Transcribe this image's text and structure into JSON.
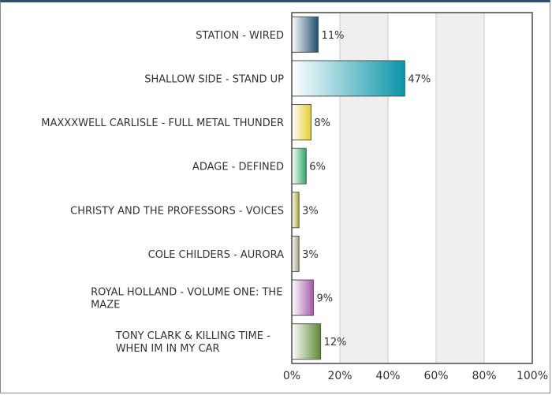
{
  "chart_data": {
    "type": "bar",
    "orientation": "horizontal",
    "categories": [
      [
        "STATION - WIRED"
      ],
      [
        "SHALLOW SIDE - STAND UP"
      ],
      [
        "MAXXXWELL CARLISLE - FULL METAL THUNDER"
      ],
      [
        "ADAGE - DEFINED"
      ],
      [
        "CHRISTY AND THE PROFESSORS - VOICES"
      ],
      [
        "COLE CHILDERS - AURORA"
      ],
      [
        "ROYAL HOLLAND - VOLUME ONE: THE",
        "MAZE"
      ],
      [
        "TONY CLARK & KILLING TIME -",
        "WHEN IM IN MY CAR"
      ]
    ],
    "values": [
      11,
      47,
      8,
      6,
      3,
      3,
      9,
      12
    ],
    "value_labels": [
      "11%",
      "47%",
      "8%",
      "6%",
      "3%",
      "3%",
      "9%",
      "12%"
    ],
    "xlim": [
      0,
      100
    ],
    "xticks": [
      0,
      20,
      40,
      60,
      80,
      100
    ],
    "xtick_labels": [
      "0%",
      "20%",
      "40%",
      "60%",
      "80%",
      "100%"
    ],
    "grid": true,
    "colors": [
      "#1e4f6e",
      "#0a95a8",
      "#e7cf2a",
      "#2aa866",
      "#a9a82c",
      "#a59f85",
      "#a45aa8",
      "#5f8a33"
    ]
  }
}
